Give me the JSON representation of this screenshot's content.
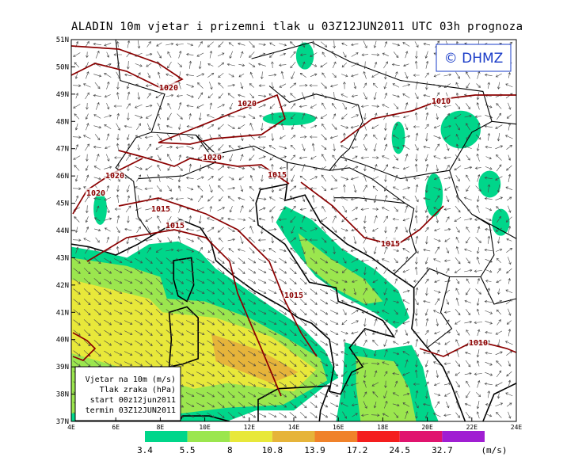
{
  "header": {
    "title": "ALADIN 10m vjetar i prizemni tlak u 03Z12JUN2011 UTC 03h prognoza"
  },
  "copyright": "© DHMZ",
  "lat_labels": [
    "51N",
    "50N",
    "49N",
    "48N",
    "47N",
    "46N",
    "45N",
    "44N",
    "43N",
    "42N",
    "41N",
    "40N",
    "39N",
    "38N",
    "37N"
  ],
  "lon_labels": [
    "4E",
    "6E",
    "8E",
    "10E",
    "12E",
    "14E",
    "16E",
    "18E",
    "20E",
    "22E",
    "24E"
  ],
  "info_box": [
    "Vjetar na 10m (m/s)",
    "Tlak zraka (hPa)",
    "start 00z12jun2011",
    "termin 03Z12JUN2011"
  ],
  "isobar_labels": [
    "1020",
    "1020",
    "1020",
    "1020",
    "1020",
    "1015",
    "1015",
    "1015",
    "1015",
    "1015",
    "1010",
    "1010"
  ],
  "colorbar": {
    "labels": [
      "3.4",
      "5.5",
      "8",
      "10.8",
      "13.9",
      "17.2",
      "24.5",
      "32.7"
    ],
    "unit": "(m/s)",
    "colors": [
      "#00d68a",
      "#9be64e",
      "#e8e83a",
      "#e6b43a",
      "#f0822a",
      "#f41e1e",
      "#e0146e",
      "#a01ed2"
    ]
  }
}
